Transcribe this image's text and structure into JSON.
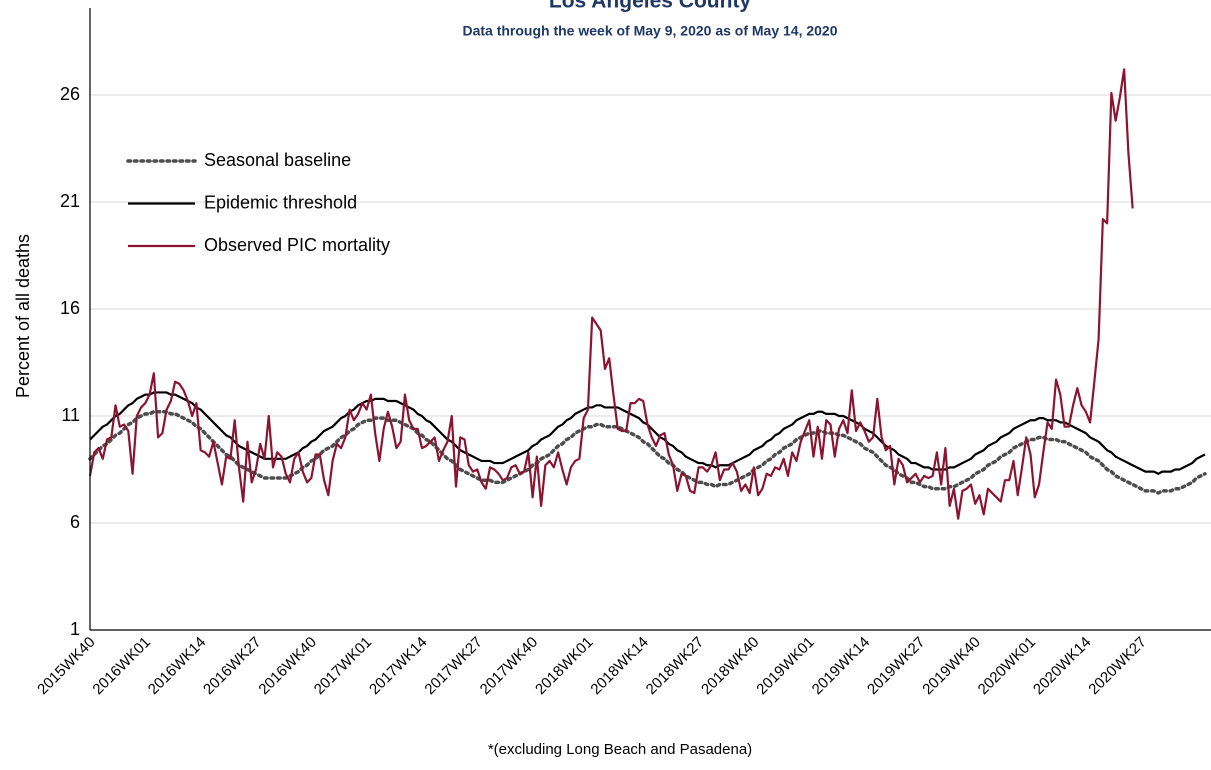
{
  "chart_data": {
    "type": "line",
    "title": "Los Angeles County",
    "subtitle": "Data through the week of May 9, 2020 as of May 14, 2020",
    "y_label": "Percent of all deaths",
    "footnote": "*(excluding Long Beach and Pasadena)",
    "ylim": [
      1,
      30
    ],
    "yticks": [
      1,
      6,
      11,
      16,
      21,
      26
    ],
    "grid": true,
    "legend": "upper left",
    "categories": [
      "2015WK40",
      null,
      null,
      null,
      null,
      null,
      null,
      null,
      null,
      null,
      null,
      null,
      null,
      "2016WK01",
      null,
      null,
      null,
      null,
      null,
      null,
      null,
      null,
      null,
      null,
      null,
      null,
      "2016WK14",
      null,
      null,
      null,
      null,
      null,
      null,
      null,
      null,
      null,
      null,
      null,
      null,
      "2016WK27",
      null,
      null,
      null,
      null,
      null,
      null,
      null,
      null,
      null,
      null,
      null,
      null,
      "2016WK40",
      null,
      null,
      null,
      null,
      null,
      null,
      null,
      null,
      null,
      null,
      null,
      null,
      "2017WK01",
      null,
      null,
      null,
      null,
      null,
      null,
      null,
      null,
      null,
      null,
      null,
      null,
      "2017WK14",
      null,
      null,
      null,
      null,
      null,
      null,
      null,
      null,
      null,
      null,
      null,
      null,
      "2017WK27",
      null,
      null,
      null,
      null,
      null,
      null,
      null,
      null,
      null,
      null,
      null,
      null,
      "2017WK40",
      null,
      null,
      null,
      null,
      null,
      null,
      null,
      null,
      null,
      null,
      null,
      null,
      "2018WK01",
      null,
      null,
      null,
      null,
      null,
      null,
      null,
      null,
      null,
      null,
      null,
      null,
      "2018WK14",
      null,
      null,
      null,
      null,
      null,
      null,
      null,
      null,
      null,
      null,
      null,
      null,
      "2018WK27",
      null,
      null,
      null,
      null,
      null,
      null,
      null,
      null,
      null,
      null,
      null,
      null,
      "2018WK40",
      null,
      null,
      null,
      null,
      null,
      null,
      null,
      null,
      null,
      null,
      null,
      null,
      "2019WK01",
      null,
      null,
      null,
      null,
      null,
      null,
      null,
      null,
      null,
      null,
      null,
      null,
      "2019WK14",
      null,
      null,
      null,
      null,
      null,
      null,
      null,
      null,
      null,
      null,
      null,
      null,
      "2019WK27",
      null,
      null,
      null,
      null,
      null,
      null,
      null,
      null,
      null,
      null,
      null,
      null,
      "2019WK40",
      null,
      null,
      null,
      null,
      null,
      null,
      null,
      null,
      null,
      null,
      null,
      null,
      "2020WK01",
      null,
      null,
      null,
      null,
      null,
      null,
      null,
      null,
      null,
      null,
      null,
      null,
      "2020WK14",
      null,
      null,
      null,
      null,
      null,
      null,
      null,
      null,
      null,
      null,
      null,
      null,
      "2020WK27",
      null,
      null,
      null,
      null,
      null,
      null,
      null,
      null,
      null,
      null,
      null,
      null,
      null,
      null,
      null
    ],
    "series": [
      {
        "name": "Seasonal baseline",
        "color": "#4d4d4d",
        "style": "dotted",
        "values": [
          9.0,
          9.2,
          9.4,
          9.6,
          9.7,
          9.9,
          10.1,
          10.2,
          10.4,
          10.6,
          10.7,
          10.9,
          11.0,
          11.1,
          11.1,
          11.2,
          11.2,
          11.2,
          11.2,
          11.1,
          11.1,
          11.0,
          10.9,
          10.8,
          10.7,
          10.5,
          10.4,
          10.2,
          10.0,
          9.8,
          9.6,
          9.4,
          9.2,
          9.1,
          8.9,
          8.7,
          8.6,
          8.5,
          8.4,
          8.3,
          8.2,
          8.1,
          8.1,
          8.1,
          8.1,
          8.1,
          8.1,
          8.2,
          8.3,
          8.4,
          8.6,
          8.7,
          8.9,
          9.0,
          9.2,
          9.4,
          9.5,
          9.6,
          9.8,
          10.0,
          10.1,
          10.3,
          10.4,
          10.6,
          10.7,
          10.8,
          10.8,
          10.9,
          10.9,
          10.9,
          10.8,
          10.8,
          10.8,
          10.7,
          10.6,
          10.5,
          10.4,
          10.2,
          10.1,
          9.9,
          9.8,
          9.6,
          9.4,
          9.2,
          9.0,
          8.9,
          8.7,
          8.5,
          8.4,
          8.3,
          8.2,
          8.1,
          8.0,
          8.0,
          8.0,
          7.9,
          7.9,
          7.9,
          8.0,
          8.1,
          8.2,
          8.3,
          8.4,
          8.5,
          8.7,
          8.8,
          9.0,
          9.1,
          9.2,
          9.4,
          9.6,
          9.7,
          9.9,
          10.0,
          10.2,
          10.3,
          10.4,
          10.5,
          10.5,
          10.6,
          10.6,
          10.5,
          10.5,
          10.5,
          10.5,
          10.4,
          10.3,
          10.2,
          10.1,
          10.0,
          9.8,
          9.7,
          9.5,
          9.3,
          9.1,
          9.0,
          8.8,
          8.7,
          8.5,
          8.4,
          8.2,
          8.1,
          8.0,
          7.9,
          7.9,
          7.8,
          7.8,
          7.7,
          7.8,
          7.8,
          7.8,
          7.9,
          8.0,
          8.1,
          8.2,
          8.3,
          8.5,
          8.6,
          8.7,
          8.9,
          9.0,
          9.2,
          9.3,
          9.5,
          9.6,
          9.7,
          9.9,
          10.0,
          10.1,
          10.2,
          10.2,
          10.3,
          10.3,
          10.2,
          10.2,
          10.2,
          10.1,
          10.1,
          10.0,
          9.9,
          9.8,
          9.7,
          9.5,
          9.4,
          9.3,
          9.1,
          8.9,
          8.7,
          8.6,
          8.5,
          8.3,
          8.2,
          8.1,
          7.9,
          7.9,
          7.8,
          7.7,
          7.7,
          7.6,
          7.6,
          7.6,
          7.6,
          7.7,
          7.7,
          7.8,
          7.9,
          8.0,
          8.1,
          8.3,
          8.4,
          8.5,
          8.7,
          8.8,
          8.9,
          9.1,
          9.2,
          9.3,
          9.5,
          9.6,
          9.7,
          9.8,
          9.9,
          9.9,
          10.0,
          10.0,
          9.9,
          9.9,
          9.9,
          9.8,
          9.8,
          9.7,
          9.6,
          9.5,
          9.4,
          9.3,
          9.1,
          9.0,
          8.9,
          8.7,
          8.5,
          8.4,
          8.2,
          8.1,
          8.0,
          7.9,
          7.8,
          7.7,
          7.6,
          7.5,
          7.5,
          7.5,
          7.4,
          7.5,
          7.5,
          7.5,
          7.6,
          7.6,
          7.7,
          7.8,
          7.9,
          8.1,
          8.2,
          8.3
        ]
      },
      {
        "name": "Epidemic threshold",
        "color": "#000000",
        "style": "solid",
        "values": [
          9.9,
          10.1,
          10.3,
          10.5,
          10.6,
          10.8,
          11.0,
          11.1,
          11.3,
          11.5,
          11.6,
          11.8,
          11.9,
          12.0,
          12.0,
          12.1,
          12.1,
          12.1,
          12.1,
          12.0,
          12.0,
          11.9,
          11.8,
          11.7,
          11.6,
          11.4,
          11.3,
          11.1,
          10.9,
          10.7,
          10.5,
          10.3,
          10.1,
          10.0,
          9.8,
          9.6,
          9.5,
          9.4,
          9.3,
          9.2,
          9.1,
          9.0,
          9.0,
          9.0,
          9.0,
          9.0,
          9.0,
          9.1,
          9.2,
          9.3,
          9.5,
          9.6,
          9.8,
          9.9,
          10.1,
          10.3,
          10.4,
          10.5,
          10.7,
          10.9,
          11.0,
          11.2,
          11.3,
          11.5,
          11.6,
          11.7,
          11.7,
          11.8,
          11.8,
          11.8,
          11.7,
          11.7,
          11.7,
          11.6,
          11.5,
          11.4,
          11.3,
          11.1,
          11.0,
          10.8,
          10.7,
          10.5,
          10.3,
          10.1,
          9.9,
          9.8,
          9.6,
          9.4,
          9.3,
          9.2,
          9.1,
          9.0,
          8.9,
          8.9,
          8.9,
          8.8,
          8.8,
          8.8,
          8.9,
          9.0,
          9.1,
          9.2,
          9.3,
          9.4,
          9.6,
          9.7,
          9.9,
          10.0,
          10.1,
          10.3,
          10.5,
          10.6,
          10.8,
          10.9,
          11.1,
          11.2,
          11.3,
          11.4,
          11.4,
          11.5,
          11.5,
          11.4,
          11.4,
          11.4,
          11.4,
          11.3,
          11.2,
          11.1,
          11.0,
          10.9,
          10.7,
          10.6,
          10.4,
          10.2,
          10.0,
          9.9,
          9.7,
          9.6,
          9.4,
          9.3,
          9.1,
          9.0,
          8.9,
          8.8,
          8.8,
          8.7,
          8.7,
          8.6,
          8.7,
          8.7,
          8.7,
          8.8,
          8.9,
          9.0,
          9.1,
          9.2,
          9.4,
          9.5,
          9.6,
          9.8,
          9.9,
          10.1,
          10.2,
          10.4,
          10.5,
          10.6,
          10.8,
          10.9,
          11.0,
          11.1,
          11.1,
          11.2,
          11.2,
          11.1,
          11.1,
          11.1,
          11.0,
          11.0,
          10.9,
          10.8,
          10.7,
          10.6,
          10.4,
          10.3,
          10.2,
          10.0,
          9.8,
          9.6,
          9.5,
          9.4,
          9.2,
          9.1,
          9.0,
          8.8,
          8.8,
          8.7,
          8.6,
          8.6,
          8.5,
          8.5,
          8.5,
          8.5,
          8.6,
          8.6,
          8.7,
          8.8,
          8.9,
          9.0,
          9.2,
          9.3,
          9.4,
          9.6,
          9.7,
          9.8,
          10.0,
          10.1,
          10.2,
          10.4,
          10.5,
          10.6,
          10.7,
          10.8,
          10.8,
          10.9,
          10.9,
          10.8,
          10.8,
          10.8,
          10.7,
          10.7,
          10.6,
          10.5,
          10.4,
          10.3,
          10.2,
          10.0,
          9.9,
          9.8,
          9.6,
          9.4,
          9.3,
          9.1,
          9.0,
          8.9,
          8.8,
          8.7,
          8.6,
          8.5,
          8.4,
          8.4,
          8.4,
          8.3,
          8.4,
          8.4,
          8.4,
          8.5,
          8.5,
          8.6,
          8.7,
          8.8,
          9.0,
          9.1,
          9.2
        ]
      },
      {
        "name": "Observed PIC mortality",
        "color": "#8b1530",
        "style": "solid",
        "values": [
          8.2,
          9.3,
          9.5,
          9.0,
          9.9,
          10.0,
          11.5,
          10.5,
          10.6,
          10.3,
          8.3,
          11.0,
          11.4,
          11.6,
          12.0,
          13.0,
          10.0,
          10.2,
          11.3,
          11.7,
          12.6,
          12.5,
          12.2,
          11.7,
          11.0,
          11.6,
          9.4,
          9.3,
          9.1,
          9.8,
          8.8,
          7.8,
          9.1,
          9.0,
          10.8,
          8.6,
          7.0,
          9.8,
          7.9,
          8.5,
          9.7,
          9.0,
          11.0,
          8.6,
          9.3,
          9.1,
          8.3,
          7.9,
          9.0,
          9.3,
          8.4,
          7.9,
          8.1,
          9.2,
          9.2,
          8.0,
          7.3,
          8.9,
          9.7,
          9.5,
          10.0,
          11.3,
          10.8,
          11.1,
          11.6,
          11.3,
          12.0,
          10.2,
          8.9,
          10.4,
          11.2,
          10.5,
          9.5,
          9.8,
          12.0,
          10.8,
          10.4,
          10.4,
          9.5,
          9.6,
          9.8,
          10.0,
          8.9,
          9.4,
          9.8,
          11.0,
          7.7,
          10.0,
          9.9,
          8.7,
          8.4,
          8.5,
          7.9,
          7.6,
          8.6,
          8.5,
          8.3,
          8.0,
          8.1,
          8.6,
          8.7,
          8.3,
          8.4,
          9.3,
          7.2,
          9.1,
          6.8,
          8.7,
          8.9,
          8.6,
          9.3,
          8.5,
          7.8,
          8.6,
          8.9,
          9.0,
          10.9,
          11.3,
          15.6,
          15.3,
          15.0,
          13.2,
          13.7,
          12.0,
          10.4,
          10.3,
          10.3,
          11.6,
          11.6,
          11.8,
          11.7,
          10.6,
          10.0,
          9.6,
          10.1,
          10.2,
          9.2,
          8.7,
          7.5,
          8.3,
          8.2,
          7.5,
          7.4,
          8.6,
          8.6,
          8.4,
          8.7,
          9.3,
          8.0,
          8.5,
          8.5,
          8.8,
          8.4,
          7.5,
          7.8,
          7.4,
          8.6,
          7.3,
          7.6,
          8.3,
          8.2,
          8.6,
          8.5,
          9.0,
          8.2,
          9.3,
          8.9,
          9.8,
          10.3,
          10.8,
          9.1,
          10.5,
          9.0,
          10.8,
          10.6,
          9.1,
          10.4,
          10.8,
          10.2,
          12.2,
          10.3,
          10.7,
          10.3,
          9.8,
          10.0,
          11.8,
          10.0,
          9.4,
          9.6,
          7.8,
          9.0,
          8.7,
          7.9,
          8.1,
          8.3,
          7.9,
          8.2,
          8.1,
          8.2,
          9.3,
          7.8,
          9.5,
          6.8,
          7.6,
          6.2,
          7.5,
          7.6,
          7.8,
          6.9,
          7.3,
          6.4,
          7.6,
          7.4,
          7.2,
          7.0,
          8.0,
          8.0,
          8.9,
          7.3,
          8.6,
          10.0,
          9.2,
          7.2,
          7.8,
          9.3,
          10.7,
          10.4,
          12.7,
          12.0,
          10.5,
          10.5,
          11.5,
          12.3,
          11.5,
          11.2,
          10.7,
          12.6,
          14.6,
          20.2,
          20.0,
          26.1,
          24.8,
          25.9,
          27.2,
          23.3,
          20.7,
          null,
          null,
          null,
          null,
          null,
          null,
          null,
          null,
          null,
          null,
          null,
          null,
          null,
          null,
          null,
          null,
          null
        ]
      }
    ]
  }
}
